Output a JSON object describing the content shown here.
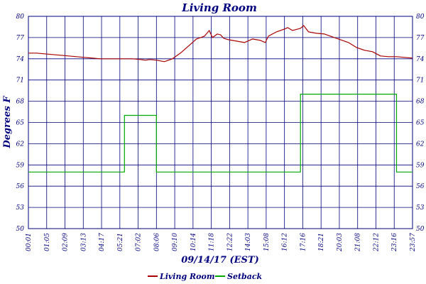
{
  "chart_data": {
    "type": "line",
    "title": "Living Room",
    "xlabel": "09/14/17 (EST)",
    "ylabel": "Degrees F",
    "ylim": [
      50,
      80
    ],
    "y_ticks": [
      50,
      53,
      56,
      59,
      62,
      65,
      68,
      71,
      74,
      77,
      80
    ],
    "x_ticks": [
      "00:01",
      "01:05",
      "02:09",
      "03:13",
      "04:17",
      "05:21",
      "07:02",
      "08:06",
      "09:10",
      "10:14",
      "11:18",
      "12:22",
      "14:03",
      "15:08",
      "16:12",
      "17:16",
      "18:21",
      "20:03",
      "21:08",
      "22:12",
      "23:16",
      "23:57"
    ],
    "grid": true,
    "legend_position": "bottom",
    "colors": {
      "plot_border": "#00007f",
      "grid": "#00007f",
      "text": "#00007f"
    },
    "series": [
      {
        "name": "Living Room",
        "color": "#aa0000",
        "x": [
          0,
          0.5,
          1,
          1.5,
          2,
          2.5,
          3,
          3.5,
          4,
          4.5,
          5,
          5.5,
          6,
          6.5,
          7,
          7.3,
          7.6,
          8,
          8.5,
          9,
          9.5,
          10,
          10.5,
          11,
          11.3,
          11.5,
          11.8,
          12,
          12.2,
          12.5,
          13,
          13.5,
          14,
          14.5,
          14.8,
          15,
          15.5,
          16,
          16.2,
          16.5,
          17,
          17.2,
          17.5,
          18,
          18.5,
          19,
          19.5,
          20,
          20.5,
          21,
          21.5,
          22,
          22.5,
          23,
          23.5,
          24
        ],
        "values": [
          74.8,
          74.8,
          74.7,
          74.6,
          74.5,
          74.4,
          74.3,
          74.2,
          74.1,
          74.0,
          74.0,
          74.0,
          74.0,
          74.0,
          73.9,
          73.8,
          73.9,
          73.8,
          73.6,
          74.0,
          74.8,
          75.8,
          76.8,
          77.2,
          78.0,
          77.0,
          77.5,
          77.4,
          76.9,
          76.7,
          76.5,
          76.3,
          76.8,
          76.6,
          76.3,
          77.2,
          77.8,
          78.2,
          78.4,
          78.0,
          78.3,
          78.7,
          77.8,
          77.6,
          77.5,
          77.1,
          76.7,
          76.3,
          75.6,
          75.2,
          75.0,
          74.4,
          74.3,
          74.3,
          74.2,
          74.1
        ]
      },
      {
        "name": "Setback",
        "color": "#00aa00",
        "x": [
          0,
          6,
          6,
          8,
          8,
          17,
          17,
          23,
          23,
          24
        ],
        "values": [
          58,
          58,
          66,
          66,
          58,
          58,
          69,
          69,
          58,
          58
        ]
      }
    ]
  }
}
